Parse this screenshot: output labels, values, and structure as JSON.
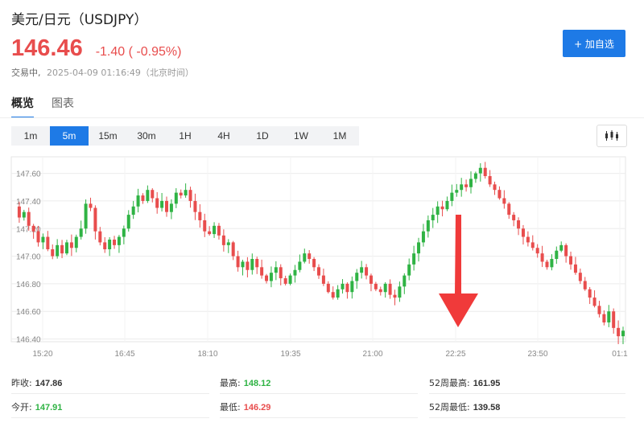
{
  "header": {
    "title": "美元/日元（USDJPY）",
    "price": "146.46",
    "change": "-1.40 ( -0.95%)",
    "status": "交易中,",
    "timestamp": "2025-04-09 01:16:49（北京时间）",
    "add_button": "+ 加自选"
  },
  "tabs": [
    {
      "label": "概览",
      "active": true
    },
    {
      "label": "图表",
      "active": false
    }
  ],
  "intervals": [
    {
      "label": "1m",
      "active": false
    },
    {
      "label": "5m",
      "active": true
    },
    {
      "label": "15m",
      "active": false
    },
    {
      "label": "30m",
      "active": false
    },
    {
      "label": "1H",
      "active": false
    },
    {
      "label": "4H",
      "active": false
    },
    {
      "label": "1D",
      "active": false
    },
    {
      "label": "1W",
      "active": false
    },
    {
      "label": "1M",
      "active": false
    }
  ],
  "chart_type_icon": "candlestick-icon",
  "chart_data": {
    "type": "candlestick",
    "y_ticks": [
      "147.60",
      "147.40",
      "147.20",
      "147.00",
      "146.80",
      "146.60",
      "146.40"
    ],
    "ylim": [
      146.38,
      147.72
    ],
    "x_ticks": [
      "15:20",
      "16:45",
      "18:10",
      "19:35",
      "21:00",
      "22:25",
      "23:50",
      "01:1"
    ],
    "grid": true,
    "colors": {
      "up": "#2fb344",
      "down": "#e84d4d"
    },
    "annotation": {
      "type": "down-arrow",
      "color": "#f03a3a"
    },
    "path": [
      147.36,
      147.28,
      147.32,
      147.22,
      147.18,
      147.1,
      147.14,
      147.05,
      147.0,
      147.08,
      147.02,
      147.1,
      147.06,
      147.14,
      147.2,
      147.38,
      147.35,
      147.18,
      147.1,
      147.05,
      147.12,
      147.08,
      147.14,
      147.2,
      147.3,
      147.36,
      147.44,
      147.4,
      147.48,
      147.42,
      147.35,
      147.4,
      147.32,
      147.38,
      147.46,
      147.44,
      147.48,
      147.4,
      147.32,
      147.26,
      147.18,
      147.16,
      147.22,
      147.15,
      147.08,
      147.1,
      147.0,
      146.92,
      146.96,
      146.9,
      146.98,
      146.92,
      146.86,
      146.82,
      146.88,
      146.92,
      146.84,
      146.8,
      146.86,
      146.9,
      146.96,
      147.02,
      146.98,
      146.92,
      146.86,
      146.8,
      146.74,
      146.7,
      146.76,
      146.8,
      146.74,
      146.82,
      146.88,
      146.92,
      146.86,
      146.8,
      146.76,
      146.74,
      146.8,
      146.72,
      146.7,
      146.78,
      146.86,
      146.94,
      147.02,
      147.1,
      147.18,
      147.26,
      147.3,
      147.36,
      147.34,
      147.4,
      147.46,
      147.48,
      147.52,
      147.5,
      147.56,
      147.6,
      147.64,
      147.58,
      147.52,
      147.48,
      147.42,
      147.38,
      147.3,
      147.26,
      147.2,
      147.14,
      147.1,
      147.06,
      147.02,
      146.96,
      146.92,
      146.98,
      147.04,
      147.08,
      147.0,
      146.94,
      146.88,
      146.82,
      146.76,
      146.7,
      146.64,
      146.58,
      146.52,
      146.6,
      146.48,
      146.42,
      146.46
    ]
  },
  "stats": {
    "prev_close_label": "昨收:",
    "prev_close": "147.86",
    "high_label": "最高:",
    "high": "148.12",
    "w52_high_label": "52周最高:",
    "w52_high": "161.95",
    "open_label": "今开:",
    "open": "147.91",
    "low_label": "最低:",
    "low": "146.29",
    "w52_low_label": "52周最低:",
    "w52_low": "139.58"
  }
}
